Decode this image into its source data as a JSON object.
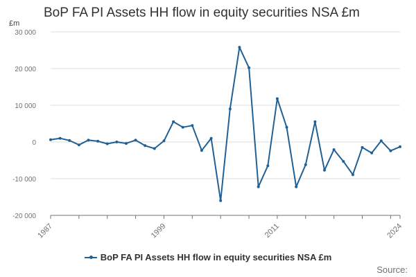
{
  "chart_data": {
    "type": "line",
    "title": "BoP FA PI Assets HH flow in equity securities NSA £m",
    "unit_label": "£m",
    "ylim": [
      -20000,
      30000
    ],
    "yticks": [
      -20000,
      -10000,
      0,
      10000,
      20000,
      30000
    ],
    "ytick_labels": [
      "-20 000",
      "-10 000",
      "0",
      "10 000",
      "20 000",
      "30 000"
    ],
    "xlim": [
      1987,
      2024
    ],
    "xtick_labels": [
      "1987",
      "1999",
      "2011",
      "2024"
    ],
    "grid": true,
    "legend_position": "bottom",
    "series": [
      {
        "name": "BoP FA PI Assets HH flow in equity securities NSA £m",
        "color": "#206095",
        "x": [
          1987,
          1988,
          1989,
          1990,
          1991,
          1992,
          1993,
          1994,
          1995,
          1996,
          1997,
          1998,
          1999,
          2000,
          2001,
          2002,
          2003,
          2004,
          2005,
          2006,
          2007,
          2008,
          2009,
          2010,
          2011,
          2012,
          2013,
          2014,
          2015,
          2016,
          2017,
          2018,
          2019,
          2020,
          2021,
          2022,
          2023,
          2024
        ],
        "values": [
          600,
          1000,
          400,
          -800,
          500,
          200,
          -500,
          0,
          -400,
          500,
          -1000,
          -1800,
          300,
          5500,
          4000,
          4500,
          -2300,
          1000,
          -16000,
          9000,
          25800,
          20200,
          -12200,
          -6500,
          11800,
          4000,
          -12200,
          -6200,
          5500,
          -7700,
          -2100,
          -5300,
          -8900,
          -1500,
          -3000,
          300,
          -2400,
          -1300
        ]
      }
    ]
  },
  "legend": {
    "label": "BoP FA PI Assets HH flow in equity securities NSA £m"
  },
  "footer": {
    "source_label": "Source:"
  }
}
